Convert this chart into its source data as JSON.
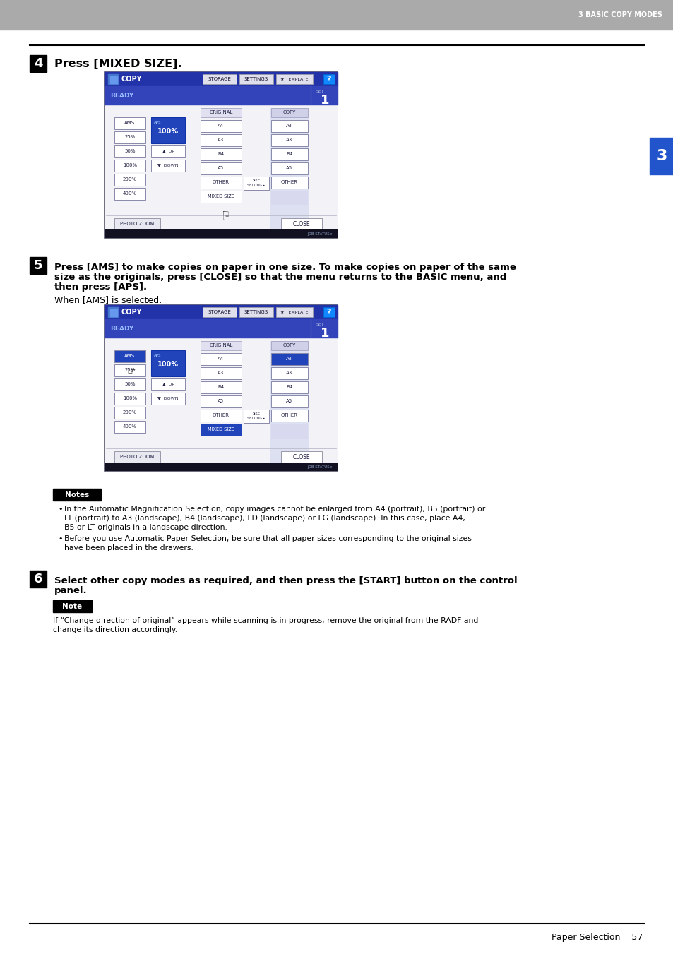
{
  "page_bg": "#ffffff",
  "header_bg": "#aaaaaa",
  "header_text": "3 BASIC COPY MODES",
  "header_text_color": "#ffffff",
  "footer_text": "Paper Selection    57",
  "sidebar_bg": "#2255cc",
  "sidebar_text": "3",
  "sidebar_text_color": "#ffffff",
  "step4_num": "4",
  "step4_text": "Press [MIXED SIZE].",
  "step5_num": "5",
  "step5_line1": "Press [AMS] to make copies on paper in one size. To make copies on paper of the same",
  "step5_line2": "size as the originals, press [CLOSE] so that the menu returns to the BASIC menu, and",
  "step5_line3": "then press [APS].",
  "step5_subtext": "When [AMS] is selected:",
  "step6_num": "6",
  "step6_line1": "Select other copy modes as required, and then press the [START] button on the control",
  "step6_line2": "panel.",
  "notes_title": "Notes",
  "notes_bullet1_line1": "In the Automatic Magnification Selection, copy images cannot be enlarged from A4 (portrait), B5 (portrait) or",
  "notes_bullet1_line2": "LT (portrait) to A3 (landscape), B4 (landscape), LD (landscape) or LG (landscape). In this case, place A4,",
  "notes_bullet1_line3": "B5 or LT originals in a landscape direction.",
  "notes_bullet2_line1": "Before you use Automatic Paper Selection, be sure that all paper sizes corresponding to the original sizes",
  "notes_bullet2_line2": "have been placed in the drawers.",
  "note_title": "Note",
  "note_line1": "If “Change direction of original” appears while scanning is in progress, remove the original from the RADF and",
  "note_line2": "change its direction accordingly."
}
